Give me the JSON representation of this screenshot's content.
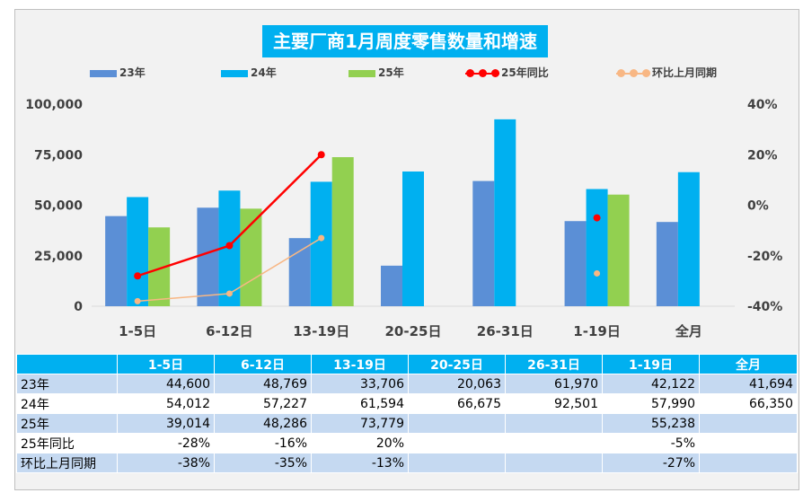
{
  "chart_data": {
    "type": "bar",
    "title": "主要厂商1月周度零售数量和增速",
    "categories": [
      "1-5日",
      "6-12日",
      "13-19日",
      "20-25日",
      "26-31日",
      "1-19日",
      "全月"
    ],
    "series": [
      {
        "name": "23年",
        "kind": "bar",
        "color": "#5b8fd6",
        "values": [
          44600,
          48769,
          33706,
          20063,
          61970,
          42122,
          41694
        ]
      },
      {
        "name": "24年",
        "kind": "bar",
        "color": "#00b0f0",
        "values": [
          54012,
          57227,
          61594,
          66675,
          92501,
          57990,
          66350
        ]
      },
      {
        "name": "25年",
        "kind": "bar",
        "color": "#92d050",
        "values": [
          39014,
          48286,
          73779,
          null,
          null,
          55238,
          null
        ]
      },
      {
        "name": "25年同比",
        "kind": "line",
        "axis": "right",
        "color": "#ff0000",
        "values": [
          -28,
          -16,
          20,
          null,
          null,
          -5,
          null
        ],
        "connected_points": 3
      },
      {
        "name": "环比上月同期",
        "kind": "line",
        "axis": "right",
        "color": "#f8b784",
        "values": [
          -38,
          -35,
          -13,
          null,
          null,
          -27,
          null
        ],
        "connected_points": 3
      }
    ],
    "y_left": {
      "min": 0,
      "max": 100000,
      "ticks": [
        "0",
        "25,000",
        "50,000",
        "75,000",
        "100,000"
      ],
      "tick_values": [
        0,
        25000,
        50000,
        75000,
        100000
      ]
    },
    "y_right": {
      "min": -40,
      "max": 40,
      "ticks": [
        "-40%",
        "-20%",
        "0%",
        "20%",
        "40%"
      ],
      "tick_values": [
        -40,
        -20,
        0,
        20,
        40
      ]
    },
    "legend_position": "top",
    "grid": false
  },
  "table": {
    "header": [
      "",
      "1-5日",
      "6-12日",
      "13-19日",
      "20-25日",
      "26-31日",
      "1-19日",
      "全月"
    ],
    "rows": [
      {
        "label": "23年",
        "cells": [
          "44,600",
          "48,769",
          "33,706",
          "20,063",
          "61,970",
          "42,122",
          "41,694"
        ]
      },
      {
        "label": "24年",
        "cells": [
          "54,012",
          "57,227",
          "61,594",
          "66,675",
          "92,501",
          "57,990",
          "66,350"
        ]
      },
      {
        "label": "25年",
        "cells": [
          "39,014",
          "48,286",
          "73,779",
          "",
          "",
          "55,238",
          ""
        ]
      },
      {
        "label": "25年同比",
        "cells": [
          "-28%",
          "-16%",
          "20%",
          "",
          "",
          "-5%",
          ""
        ]
      },
      {
        "label": "环比上月同期",
        "cells": [
          "-38%",
          "-35%",
          "-13%",
          "",
          "",
          "-27%",
          ""
        ]
      }
    ]
  }
}
